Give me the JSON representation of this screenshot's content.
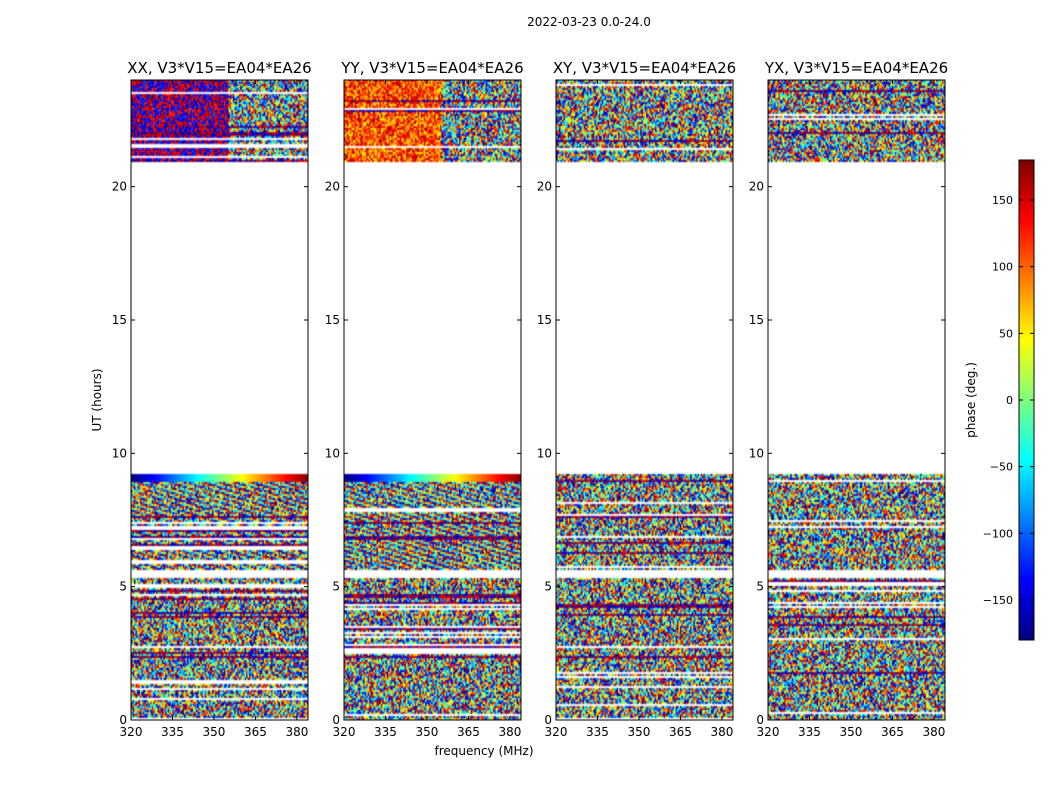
{
  "figure": {
    "suptitle": "2022-03-23 0.0-24.0",
    "xlabel": "frequency (MHz)",
    "ylabel": "UT (hours)",
    "colorbar_label": "phase (deg.)",
    "colorbar_ticks": [
      "150",
      "100",
      "50",
      "0",
      "−50",
      "−100",
      "−150"
    ],
    "colorbar_tick_values": [
      150,
      100,
      50,
      0,
      -50,
      -100,
      -150
    ],
    "colorbar_range": [
      -180,
      180
    ],
    "colormap": "jet",
    "colormap_stops": [
      "#00007f",
      "#0000ff",
      "#007fff",
      "#00ffff",
      "#7fff7f",
      "#ffff00",
      "#ff7f00",
      "#ff0000",
      "#7f0000"
    ]
  },
  "chart_data": [
    {
      "type": "heatmap",
      "title": "XX, V3*V15=EA04*EA26",
      "xlabel": "frequency (MHz)",
      "ylabel": "UT (hours)",
      "xlim": [
        320,
        384
      ],
      "ylim": [
        0,
        24
      ],
      "xticks": [
        "320",
        "335",
        "350",
        "365",
        "380"
      ],
      "xtick_values": [
        320,
        335,
        350,
        365,
        380
      ],
      "yticks": [
        "0",
        "5",
        "10",
        "15",
        "20"
      ],
      "ytick_values": [
        0,
        5,
        10,
        15,
        20
      ],
      "value": "phase (deg.)",
      "data_time_ranges_ut": [
        [
          0,
          5.3
        ],
        [
          5.65,
          9.2
        ],
        [
          20.9,
          24
        ]
      ],
      "gap_ut": [
        9.2,
        20.9
      ]
    },
    {
      "type": "heatmap",
      "title": "YY, V3*V15=EA04*EA26",
      "xlabel": "frequency (MHz)",
      "ylabel": "UT (hours)",
      "xlim": [
        320,
        384
      ],
      "ylim": [
        0,
        24
      ],
      "xticks": [
        "320",
        "335",
        "350",
        "365",
        "380"
      ],
      "xtick_values": [
        320,
        335,
        350,
        365,
        380
      ],
      "yticks": [
        "0",
        "5",
        "10",
        "15",
        "20"
      ],
      "ytick_values": [
        0,
        5,
        10,
        15,
        20
      ],
      "value": "phase (deg.)",
      "data_time_ranges_ut": [
        [
          0,
          5.3
        ],
        [
          5.65,
          9.2
        ],
        [
          20.9,
          24
        ]
      ],
      "gap_ut": [
        9.2,
        20.9
      ]
    },
    {
      "type": "heatmap",
      "title": "XY, V3*V15=EA04*EA26",
      "xlabel": "frequency (MHz)",
      "ylabel": "UT (hours)",
      "xlim": [
        320,
        384
      ],
      "ylim": [
        0,
        24
      ],
      "xticks": [
        "320",
        "335",
        "350",
        "365",
        "380"
      ],
      "xtick_values": [
        320,
        335,
        350,
        365,
        380
      ],
      "yticks": [
        "0",
        "5",
        "10",
        "15",
        "20"
      ],
      "ytick_values": [
        0,
        5,
        10,
        15,
        20
      ],
      "value": "phase (deg.)",
      "data_time_ranges_ut": [
        [
          0,
          5.3
        ],
        [
          5.65,
          9.2
        ],
        [
          20.9,
          24
        ]
      ],
      "gap_ut": [
        9.2,
        20.9
      ]
    },
    {
      "type": "heatmap",
      "title": "YX, V3*V15=EA04*EA26",
      "xlabel": "frequency (MHz)",
      "ylabel": "UT (hours)",
      "xlim": [
        320,
        384
      ],
      "ylim": [
        0,
        24
      ],
      "xticks": [
        "320",
        "335",
        "350",
        "365",
        "380"
      ],
      "xtick_values": [
        320,
        335,
        350,
        365,
        380
      ],
      "yticks": [
        "0",
        "5",
        "10",
        "15",
        "20"
      ],
      "ytick_values": [
        0,
        5,
        10,
        15,
        20
      ],
      "value": "phase (deg.)",
      "data_time_ranges_ut": [
        [
          0,
          5.3
        ],
        [
          5.65,
          9.2
        ],
        [
          20.9,
          24
        ]
      ],
      "gap_ut": [
        9.2,
        20.9
      ]
    }
  ]
}
